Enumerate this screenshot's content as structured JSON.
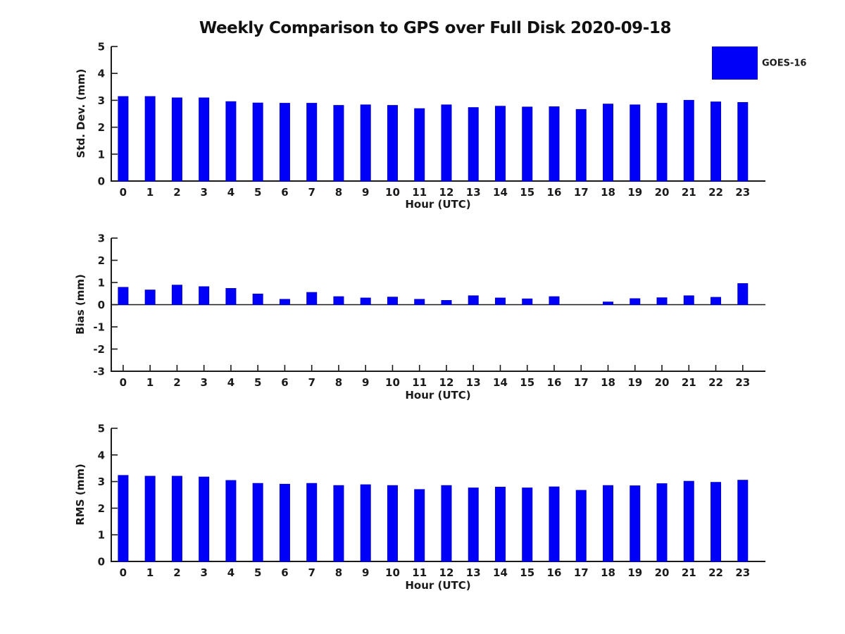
{
  "page": {
    "title": "Weekly Comparison to GPS over Full Disk 2020-09-18"
  },
  "legend": {
    "label": "GOES-16",
    "color": "#0000f8",
    "edge_color": "#0000c8"
  },
  "colors": {
    "bar_fill": "#0000f8",
    "bar_edge": "#0000c8",
    "axis": "#1a1a1a",
    "text": "#1a1a1a",
    "background": "#ffffff"
  },
  "chart_data": [
    {
      "type": "bar",
      "title": "Weekly Comparison to GPS over Full Disk 2020-09-18",
      "xlabel": "Hour (UTC)",
      "ylabel": "Std. Dev. (mm)",
      "ylim": [
        0,
        5
      ],
      "y_ticks": [
        0,
        1,
        2,
        3,
        4,
        5
      ],
      "grid": false,
      "legend": "GOES-16",
      "legend_position": "upper-right",
      "categories": [
        "0",
        "1",
        "2",
        "3",
        "4",
        "5",
        "6",
        "7",
        "8",
        "9",
        "10",
        "11",
        "12",
        "13",
        "14",
        "15",
        "16",
        "17",
        "18",
        "19",
        "20",
        "21",
        "22",
        "23"
      ],
      "values": [
        3.14,
        3.14,
        3.09,
        3.09,
        2.95,
        2.9,
        2.89,
        2.89,
        2.81,
        2.83,
        2.81,
        2.69,
        2.83,
        2.73,
        2.78,
        2.75,
        2.76,
        2.66,
        2.86,
        2.83,
        2.89,
        3.0,
        2.94,
        2.92
      ]
    },
    {
      "type": "bar",
      "title": "",
      "xlabel": "Hour (UTC)",
      "ylabel": "Bias (mm)",
      "ylim": [
        -3,
        3
      ],
      "y_ticks": [
        -3,
        -2,
        -1,
        0,
        1,
        2,
        3
      ],
      "grid": false,
      "legend": "GOES-16",
      "categories": [
        "0",
        "1",
        "2",
        "3",
        "4",
        "5",
        "6",
        "7",
        "8",
        "9",
        "10",
        "11",
        "12",
        "13",
        "14",
        "15",
        "16",
        "17",
        "18",
        "19",
        "20",
        "21",
        "22",
        "23"
      ],
      "values": [
        0.78,
        0.66,
        0.88,
        0.81,
        0.73,
        0.48,
        0.24,
        0.55,
        0.36,
        0.3,
        0.34,
        0.24,
        0.19,
        0.4,
        0.3,
        0.26,
        0.36,
        0.0,
        0.12,
        0.27,
        0.31,
        0.4,
        0.33,
        0.95
      ]
    },
    {
      "type": "bar",
      "title": "",
      "xlabel": "Hour (UTC)",
      "ylabel": "RMS (mm)",
      "ylim": [
        0,
        5
      ],
      "y_ticks": [
        0,
        1,
        2,
        3,
        4,
        5
      ],
      "grid": false,
      "legend": "GOES-16",
      "categories": [
        "0",
        "1",
        "2",
        "3",
        "4",
        "5",
        "6",
        "7",
        "8",
        "9",
        "10",
        "11",
        "12",
        "13",
        "14",
        "15",
        "16",
        "17",
        "18",
        "19",
        "20",
        "21",
        "22",
        "23"
      ],
      "values": [
        3.23,
        3.2,
        3.2,
        3.17,
        3.04,
        2.93,
        2.9,
        2.93,
        2.85,
        2.88,
        2.85,
        2.7,
        2.85,
        2.76,
        2.79,
        2.76,
        2.8,
        2.67,
        2.85,
        2.84,
        2.92,
        3.01,
        2.97,
        3.05
      ]
    }
  ]
}
